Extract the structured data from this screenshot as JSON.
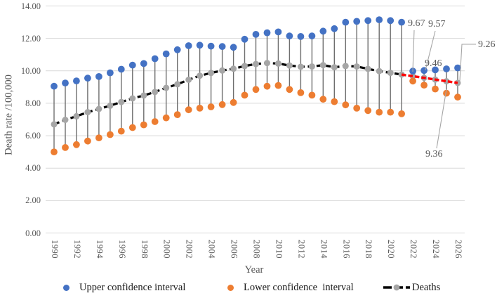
{
  "chart_data": {
    "type": "scatter",
    "description": "Observed and forecast death rate per 100,000 with upper/lower confidence intervals and error bars; red dashed segment is the 2021-2026 forecast trend",
    "x": [
      1990,
      1991,
      1992,
      1993,
      1994,
      1995,
      1996,
      1997,
      1998,
      1999,
      2000,
      2001,
      2002,
      2003,
      2004,
      2005,
      2006,
      2007,
      2008,
      2009,
      2010,
      2011,
      2012,
      2013,
      2014,
      2015,
      2016,
      2017,
      2018,
      2019,
      2020,
      2021,
      2022,
      2023,
      2024,
      2025,
      2026
    ],
    "xtick_labels": [
      "1990",
      "1992",
      "1994",
      "1996",
      "1998",
      "2000",
      "2002",
      "2004",
      "2006",
      "2008",
      "2010",
      "2012",
      "2014",
      "2016",
      "2018",
      "2020",
      "2022",
      "2024",
      "2026"
    ],
    "xlabel": "Year",
    "ylabel": "Death rate /100,000",
    "ylim": [
      0,
      14
    ],
    "yticks": {
      "values": [
        0,
        2,
        4,
        6,
        8,
        10,
        12,
        14
      ],
      "labels": [
        "0.00",
        "2.00",
        "4.00",
        "6.00",
        "8.00",
        "10.00",
        "12.00",
        "14.00"
      ]
    },
    "grid": "horizontal",
    "legend_position": "bottom",
    "series": [
      {
        "name": "Upper confidence interval",
        "type": "scatter",
        "color": "#4472C4",
        "values": [
          9.05,
          9.25,
          9.38,
          9.55,
          9.65,
          9.88,
          10.1,
          10.35,
          10.45,
          10.75,
          11.05,
          11.3,
          11.55,
          11.58,
          11.52,
          11.5,
          11.45,
          11.95,
          12.25,
          12.35,
          12.4,
          12.15,
          12.12,
          12.15,
          12.45,
          12.6,
          13.0,
          13.05,
          13.1,
          13.15,
          13.1,
          13.0,
          9.98,
          10.02,
          10.06,
          10.12,
          10.18
        ]
      },
      {
        "name": "Lower confidence  interval",
        "type": "scatter",
        "color": "#ED7D31",
        "values": [
          5.0,
          5.27,
          5.45,
          5.67,
          5.87,
          6.07,
          6.28,
          6.5,
          6.67,
          6.87,
          7.1,
          7.3,
          7.6,
          7.7,
          7.78,
          7.92,
          8.05,
          8.5,
          8.85,
          9.05,
          9.1,
          8.85,
          8.65,
          8.5,
          8.25,
          8.1,
          7.9,
          7.7,
          7.55,
          7.45,
          7.45,
          7.35,
          9.37,
          9.12,
          8.88,
          8.62,
          8.38
        ]
      },
      {
        "name": "Deaths",
        "type": "line+marker",
        "line_color": "#000000",
        "line_style": "dashed",
        "marker_color": "#A6A6A6",
        "x_start": 1990,
        "values": [
          6.7,
          6.98,
          7.2,
          7.45,
          7.65,
          7.85,
          8.08,
          8.3,
          8.48,
          8.7,
          8.95,
          9.17,
          9.45,
          9.7,
          9.87,
          10.02,
          10.13,
          10.3,
          10.42,
          10.48,
          10.45,
          10.33,
          10.25,
          10.27,
          10.35,
          10.22,
          10.3,
          10.27,
          10.12,
          9.98,
          9.88,
          9.77
        ]
      },
      {
        "name": "Deaths forecast trend",
        "type": "line+marker",
        "line_color": "#FF0000",
        "line_style": "dashed",
        "marker_color": "#A6A6A6",
        "x_start": 2021,
        "values": [
          9.77,
          9.67,
          9.57,
          9.46,
          9.36,
          9.26
        ]
      }
    ],
    "error_bars": {
      "between": [
        "Upper confidence interval",
        "Lower confidence  interval"
      ],
      "color": "#6E6E6E"
    },
    "annotations": [
      {
        "text": "9.67",
        "target_year": 2022
      },
      {
        "text": "9.57",
        "target_year": 2023
      },
      {
        "text": "9.46",
        "target_year": 2024
      },
      {
        "text": "9.36",
        "target_year": 2025
      },
      {
        "text": "9.26",
        "target_year": 2026
      }
    ]
  },
  "legend": {
    "items": [
      {
        "label": "Upper confidence interval",
        "marker": "dot",
        "color": "#4472C4"
      },
      {
        "label": "Lower confidence  interval",
        "marker": "dot",
        "color": "#ED7D31"
      },
      {
        "label": "Deaths",
        "marker": "dashed-line-with-dot",
        "line_color": "#000000",
        "dot_color": "#A6A6A6"
      }
    ]
  },
  "colors": {
    "grid": "#D9D9D9",
    "axis_text": "#595959",
    "leader_line": "#A6A6A6",
    "forecast_red": "#FF0000"
  }
}
